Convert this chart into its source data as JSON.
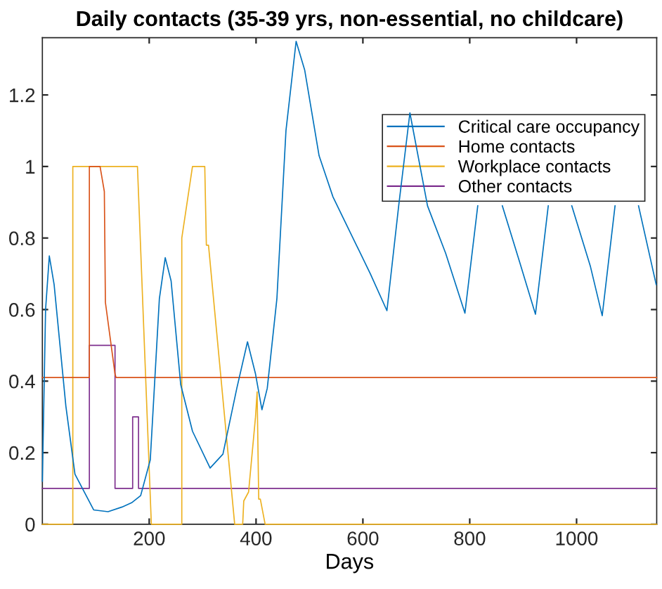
{
  "chart_data": {
    "type": "line",
    "title": "Daily contacts (35-39 yrs, non-essential, no childcare)",
    "xlabel": "Days",
    "xlim": [
      0,
      1150
    ],
    "ylim": [
      0,
      1.36
    ],
    "xticks": [
      200,
      400,
      600,
      800,
      1000
    ],
    "yticks": [
      0,
      0.2,
      0.4,
      0.6,
      0.8,
      1,
      1.2
    ],
    "grid": false,
    "legend": "top right",
    "marker": "none",
    "line_style": "solid",
    "series": [
      {
        "name": "Critical care occupancy",
        "color": "#0072bd",
        "x": [
          0,
          6,
          13,
          22,
          44,
          61,
          96,
          123,
          149,
          167,
          184,
          202,
          219,
          230,
          241,
          259,
          281,
          314,
          338,
          364,
          384,
          399,
          411,
          421,
          439,
          456,
          475,
          491,
          518,
          544,
          570,
          614,
          645,
          667,
          688,
          721,
          755,
          791,
          815,
          838,
          861,
          894,
          923,
          947,
          969,
          991,
          1026,
          1048,
          1072,
          1094,
          1116,
          1149
        ],
        "values": [
          0.12,
          0.6,
          0.75,
          0.67,
          0.33,
          0.14,
          0.04,
          0.035,
          0.048,
          0.06,
          0.08,
          0.18,
          0.63,
          0.745,
          0.68,
          0.39,
          0.26,
          0.157,
          0.196,
          0.38,
          0.51,
          0.42,
          0.32,
          0.38,
          0.63,
          1.1,
          1.35,
          1.27,
          1.03,
          0.915,
          0.835,
          0.7,
          0.597,
          0.89,
          1.15,
          0.89,
          0.757,
          0.59,
          0.89,
          null,
          0.89,
          0.73,
          0.587,
          0.89,
          null,
          0.89,
          0.72,
          0.583,
          0.89,
          null,
          0.89,
          0.67
        ]
      },
      {
        "name": "Home contacts",
        "color": "#d95319",
        "x": [
          0,
          88,
          88,
          108,
          116,
          118,
          136,
          138,
          1150
        ],
        "values": [
          0.41,
          0.41,
          1,
          1,
          0.93,
          0.62,
          0.42,
          0.41,
          0.41
        ]
      },
      {
        "name": "Workplace contacts",
        "color": "#edb120",
        "x": [
          0,
          57,
          57,
          178,
          204,
          261,
          261,
          268,
          281,
          304,
          307,
          311,
          360,
          375,
          377,
          386,
          399,
          402,
          405,
          408,
          417,
          1150
        ],
        "values": [
          0,
          0,
          1,
          1,
          0,
          0,
          0.8,
          0.87,
          1,
          1,
          0.78,
          0.78,
          0,
          0,
          0.065,
          0.09,
          0.3,
          0.37,
          0.07,
          0.07,
          0,
          0
        ]
      },
      {
        "name": "Other contacts",
        "color": "#7e2f8e",
        "x": [
          0,
          88,
          88,
          136,
          136,
          169,
          169,
          180,
          180,
          1150
        ],
        "values": [
          0.1,
          0.1,
          0.5,
          0.5,
          0.1,
          0.1,
          0.3,
          0.3,
          0.1,
          0.1
        ]
      }
    ]
  }
}
